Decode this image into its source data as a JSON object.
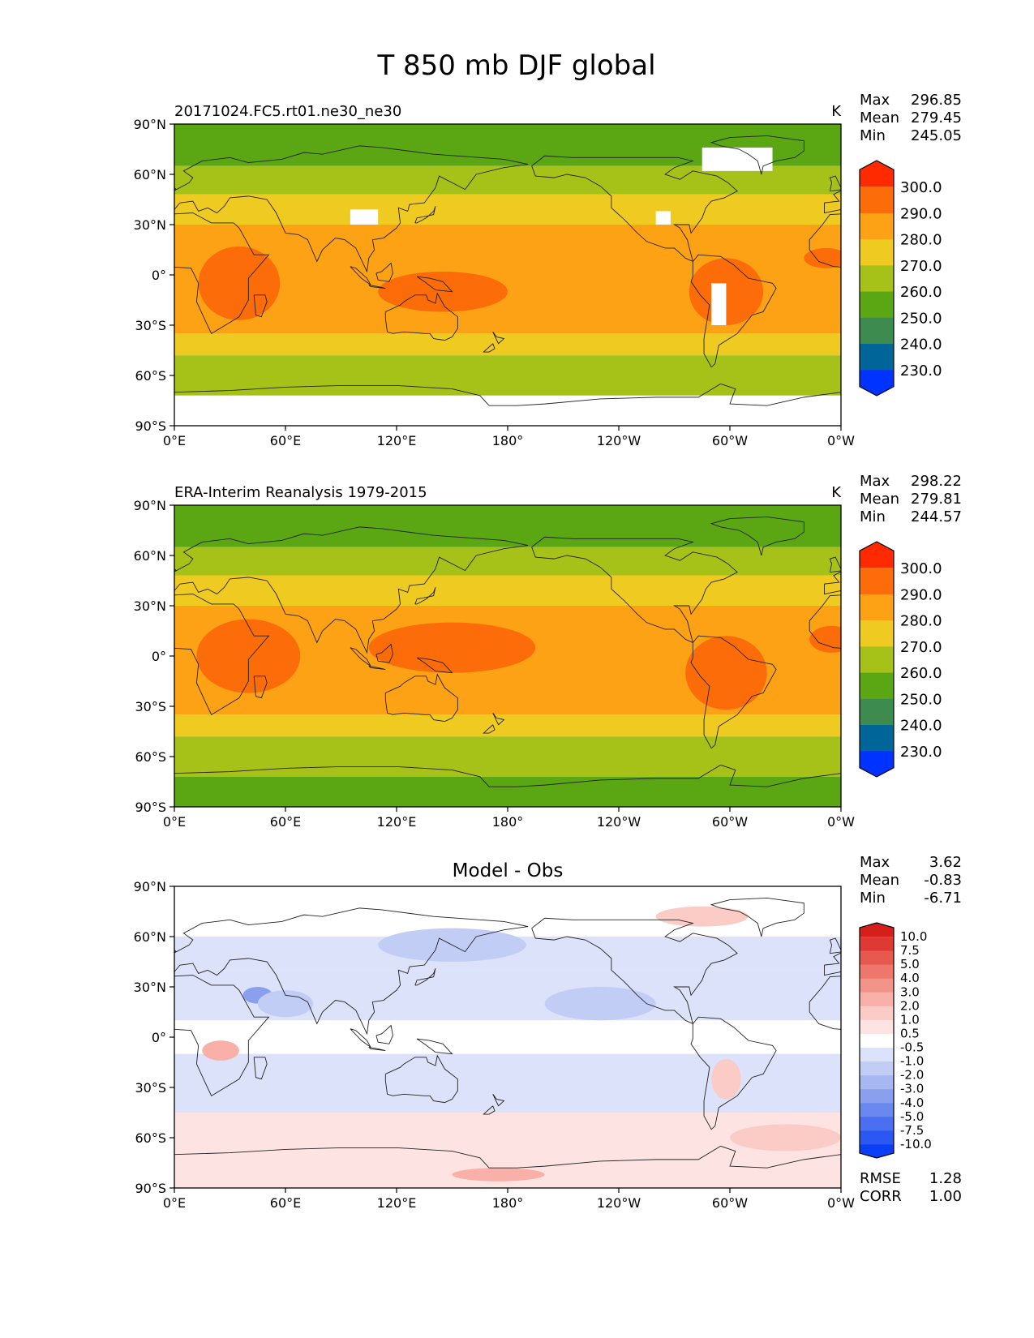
{
  "figure_title": "T 850 mb DJF global",
  "colors": {
    "abs_palette": [
      "#0033ff",
      "#006699",
      "#3d8b4f",
      "#5aa613",
      "#a6c118",
      "#efcb21",
      "#fda215",
      "#fc6c08",
      "#ff2a00"
    ],
    "diff_palette": [
      "#0a3ff5",
      "#2b57f2",
      "#4a6ff0",
      "#6a88ee",
      "#8aa0ee",
      "#a6b7f2",
      "#c1cdf5",
      "#dbe2fa",
      "#ffffff",
      "#fde3e1",
      "#fbcbc6",
      "#f8b0a9",
      "#f3948b",
      "#ee766d",
      "#e7584f",
      "#de3a33",
      "#d41f1b"
    ],
    "coast": "#222222",
    "missing": "#ffffff"
  },
  "chart_data": [
    {
      "type": "heatmap",
      "id": "model",
      "title": "20171024.FC5.rt01.ne30_ne30",
      "units": "K",
      "stats": [
        {
          "label": "Max",
          "value": "296.85"
        },
        {
          "label": "Mean",
          "value": "279.45"
        },
        {
          "label": "Min",
          "value": "245.05"
        }
      ],
      "xticks": [
        "0°E",
        "60°E",
        "120°E",
        "180°",
        "120°W",
        "60°W",
        "0°W"
      ],
      "yticks": [
        "90°N",
        "60°N",
        "30°N",
        "0°",
        "30°S",
        "60°S",
        "90°S"
      ],
      "xlim": [
        0,
        360
      ],
      "ylim": [
        -90,
        90
      ],
      "colorbar": {
        "levels": [
          230,
          240,
          250,
          260,
          270,
          280,
          290,
          300
        ],
        "labels": [
          "230.0",
          "240.0",
          "250.0",
          "260.0",
          "270.0",
          "280.0",
          "290.0",
          "300.0"
        ],
        "extend": "both"
      },
      "bands": [
        {
          "lat_from": 90,
          "lat_to": 65,
          "level": 250
        },
        {
          "lat_from": 65,
          "lat_to": 48,
          "level": 260
        },
        {
          "lat_from": 48,
          "lat_to": 30,
          "level": 270
        },
        {
          "lat_from": 30,
          "lat_to": -35,
          "level": 280
        },
        {
          "lat_from": -35,
          "lat_to": -48,
          "level": 270
        },
        {
          "lat_from": -48,
          "lat_to": -72,
          "level": 260
        }
      ],
      "warm_regions": [
        {
          "lon": 35,
          "lat": -5,
          "rx": 22,
          "ry": 22
        },
        {
          "lon": 145,
          "lat": -10,
          "rx": 35,
          "ry": 12
        },
        {
          "lon": 298,
          "lat": -10,
          "rx": 20,
          "ry": 20
        },
        {
          "lon": 352,
          "lat": 10,
          "rx": 12,
          "ry": 6
        }
      ],
      "missing_regions": [
        {
          "lon": 0,
          "lat": -90,
          "w": 360,
          "h": 18
        },
        {
          "lon": 285,
          "lat": 62,
          "w": 38,
          "h": 14
        },
        {
          "lon": 95,
          "lat": 30,
          "w": 15,
          "h": 9
        },
        {
          "lon": 260,
          "lat": 30,
          "w": 8,
          "h": 8
        },
        {
          "lon": 290,
          "lat": -30,
          "w": 8,
          "h": 25
        }
      ]
    },
    {
      "type": "heatmap",
      "id": "obs",
      "title": "ERA-Interim Reanalysis 1979-2015",
      "units": "K",
      "stats": [
        {
          "label": "Max",
          "value": "298.22"
        },
        {
          "label": "Mean",
          "value": "279.81"
        },
        {
          "label": "Min",
          "value": "244.57"
        }
      ],
      "xticks": [
        "0°E",
        "60°E",
        "120°E",
        "180°",
        "120°W",
        "60°W",
        "0°W"
      ],
      "yticks": [
        "90°N",
        "60°N",
        "30°N",
        "0°",
        "30°S",
        "60°S",
        "90°S"
      ],
      "xlim": [
        0,
        360
      ],
      "ylim": [
        -90,
        90
      ],
      "colorbar": {
        "levels": [
          230,
          240,
          250,
          260,
          270,
          280,
          290,
          300
        ],
        "labels": [
          "230.0",
          "240.0",
          "250.0",
          "260.0",
          "270.0",
          "280.0",
          "290.0",
          "300.0"
        ],
        "extend": "both"
      },
      "bands": [
        {
          "lat_from": 90,
          "lat_to": 65,
          "level": 250
        },
        {
          "lat_from": 65,
          "lat_to": 48,
          "level": 260
        },
        {
          "lat_from": 48,
          "lat_to": 30,
          "level": 270
        },
        {
          "lat_from": 30,
          "lat_to": -35,
          "level": 280
        },
        {
          "lat_from": -35,
          "lat_to": -48,
          "level": 270
        },
        {
          "lat_from": -48,
          "lat_to": -72,
          "level": 260
        },
        {
          "lat_from": -72,
          "lat_to": -90,
          "level": 250
        }
      ],
      "warm_regions": [
        {
          "lon": 40,
          "lat": 0,
          "rx": 28,
          "ry": 22
        },
        {
          "lon": 150,
          "lat": 5,
          "rx": 45,
          "ry": 15
        },
        {
          "lon": 298,
          "lat": -10,
          "rx": 22,
          "ry": 22
        },
        {
          "lon": 355,
          "lat": 10,
          "rx": 12,
          "ry": 8
        }
      ],
      "missing_regions": []
    },
    {
      "type": "heatmap",
      "id": "diff",
      "title": "Model - Obs",
      "units": "",
      "stats": [
        {
          "label": "Max",
          "value": "3.62"
        },
        {
          "label": "Mean",
          "value": "-0.83"
        },
        {
          "label": "Min",
          "value": "-6.71"
        }
      ],
      "extra_stats": [
        {
          "label": "RMSE",
          "value": "1.28"
        },
        {
          "label": "CORR",
          "value": "1.00"
        }
      ],
      "xticks": [
        "0°E",
        "60°E",
        "120°E",
        "180°",
        "120°W",
        "60°W",
        "0°W"
      ],
      "yticks": [
        "90°N",
        "60°N",
        "30°N",
        "0°",
        "30°S",
        "60°S",
        "90°S"
      ],
      "xlim": [
        0,
        360
      ],
      "ylim": [
        -90,
        90
      ],
      "colorbar": {
        "levels": [
          -10,
          -7.5,
          -5,
          -4,
          -3,
          -2,
          -1,
          -0.5,
          0.5,
          1,
          2,
          3,
          4,
          5,
          7.5,
          10
        ],
        "labels": [
          "-10.0",
          "-7.5",
          "-5.0",
          "-4.0",
          "-3.0",
          "-2.0",
          "-1.0",
          "-0.5",
          "0.5",
          "1.0",
          "2.0",
          "3.0",
          "4.0",
          "5.0",
          "7.5",
          "10.0"
        ],
        "extend": "both"
      },
      "bands": [
        {
          "lat_from": 82,
          "lat_to": 60,
          "level": -0.5
        },
        {
          "lat_from": 60,
          "lat_to": 40,
          "level": -1.0
        },
        {
          "lat_from": 40,
          "lat_to": 10,
          "level": -1.0
        },
        {
          "lat_from": 10,
          "lat_to": -10,
          "level": -0.5
        },
        {
          "lat_from": -10,
          "lat_to": -45,
          "level": -1.0
        },
        {
          "lat_from": -45,
          "lat_to": -75,
          "level": 0.5
        },
        {
          "lat_from": -75,
          "lat_to": -90,
          "level": 0.5
        }
      ],
      "warm_regions": [
        {
          "lon": 285,
          "lat": 72,
          "rx": 25,
          "ry": 6,
          "level": 1.0
        },
        {
          "lon": 25,
          "lat": -8,
          "rx": 10,
          "ry": 6,
          "level": 2.0
        },
        {
          "lon": 298,
          "lat": -25,
          "rx": 8,
          "ry": 12,
          "level": 1.0
        },
        {
          "lon": 330,
          "lat": -60,
          "rx": 30,
          "ry": 8,
          "level": 1.0
        },
        {
          "lon": 175,
          "lat": -82,
          "rx": 25,
          "ry": 4,
          "level": 2.0
        },
        {
          "lon": 45,
          "lat": 25,
          "rx": 8,
          "ry": 5,
          "level": -4.0
        },
        {
          "lon": 60,
          "lat": 20,
          "rx": 15,
          "ry": 8,
          "level": -2.0
        },
        {
          "lon": 230,
          "lat": 20,
          "rx": 30,
          "ry": 10,
          "level": -2.0
        },
        {
          "lon": 150,
          "lat": 55,
          "rx": 40,
          "ry": 10,
          "level": -2.0
        }
      ],
      "missing_regions": []
    }
  ]
}
